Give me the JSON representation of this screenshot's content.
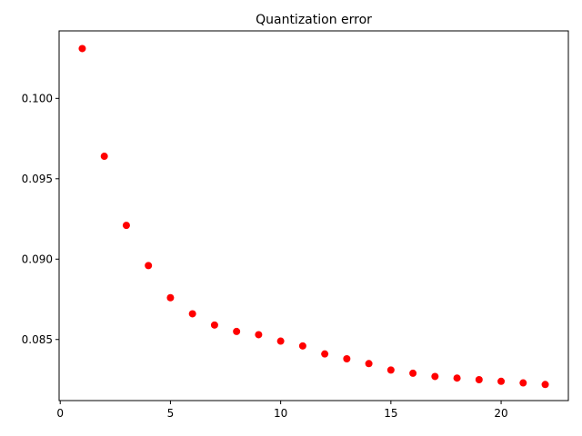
{
  "chart_data": {
    "type": "scatter",
    "title": "Quantization error",
    "xlabel": "",
    "ylabel": "",
    "xlim": [
      -0.05,
      23.05
    ],
    "ylim": [
      0.0812,
      0.1042
    ],
    "xticks": [
      0,
      5,
      10,
      15,
      20
    ],
    "xtick_labels": [
      "0",
      "5",
      "10",
      "15",
      "20"
    ],
    "yticks": [
      0.085,
      0.09,
      0.095,
      0.1
    ],
    "ytick_labels": [
      "0.085",
      "0.090",
      "0.095",
      "0.100"
    ],
    "grid": false,
    "marker_color": "#ff0000",
    "x": [
      1,
      2,
      3,
      4,
      5,
      6,
      7,
      8,
      9,
      10,
      11,
      12,
      13,
      14,
      15,
      16,
      17,
      18,
      19,
      20,
      21,
      22
    ],
    "y": [
      0.1031,
      0.0964,
      0.0921,
      0.0896,
      0.0876,
      0.0866,
      0.0859,
      0.0855,
      0.0853,
      0.0849,
      0.0846,
      0.0841,
      0.0838,
      0.0835,
      0.0831,
      0.0829,
      0.0827,
      0.0826,
      0.0825,
      0.0824,
      0.0823,
      0.0822
    ]
  }
}
